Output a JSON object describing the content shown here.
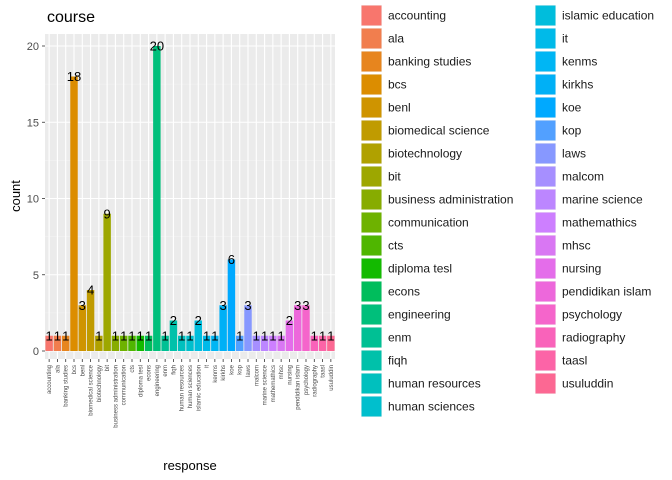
{
  "chart_data": {
    "type": "bar",
    "title": "course",
    "xlabel": "response",
    "ylabel": "count",
    "ylim": [
      0,
      21
    ],
    "yticks": [
      0,
      5,
      10,
      15,
      20
    ],
    "grid": true,
    "legend_position": "right",
    "categories": [
      "accounting",
      "ala",
      "banking studies",
      "bcs",
      "benl",
      "biomedical science",
      "biotechnology",
      "bit",
      "business administration",
      "communication",
      "cts",
      "diploma tesl",
      "econs",
      "engineering",
      "enm",
      "fiqh",
      "human resources",
      "human sciences",
      "islamic education",
      "it",
      "kenms",
      "kirkhs",
      "koe",
      "kop",
      "laws",
      "malcom",
      "marine science",
      "mathemathics",
      "mhsc",
      "nursing",
      "pendidikan islam",
      "psychology",
      "radiography",
      "taasl",
      "usuluddin"
    ],
    "values": [
      1,
      1,
      1,
      18,
      3,
      4,
      1,
      9,
      1,
      1,
      1,
      1,
      1,
      20,
      1,
      2,
      1,
      1,
      2,
      1,
      1,
      3,
      6,
      1,
      3,
      1,
      1,
      1,
      1,
      2,
      3,
      3,
      1,
      1,
      1
    ],
    "colors": [
      "#F8766D",
      "#F17E4E",
      "#E7851E",
      "#DC8D00",
      "#CF9400",
      "#C09B00",
      "#B0A100",
      "#9DA700",
      "#87AC00",
      "#6EB200",
      "#4FB600",
      "#13BA00",
      "#00BD5C",
      "#00BF7B",
      "#00C094",
      "#00C1AA",
      "#00C0BE",
      "#00BFCD",
      "#00BDDC",
      "#00BAE9",
      "#00B6F4",
      "#00B0F6",
      "#00A9FF",
      "#52A0FF",
      "#8798FF",
      "#A68FFF",
      "#BC86FF",
      "#CD7FFF",
      "#D977F3",
      "#E46DEA",
      "#ED68DB",
      "#F565CB",
      "#F963BA",
      "#FC64A7",
      "#FC6893"
    ]
  }
}
